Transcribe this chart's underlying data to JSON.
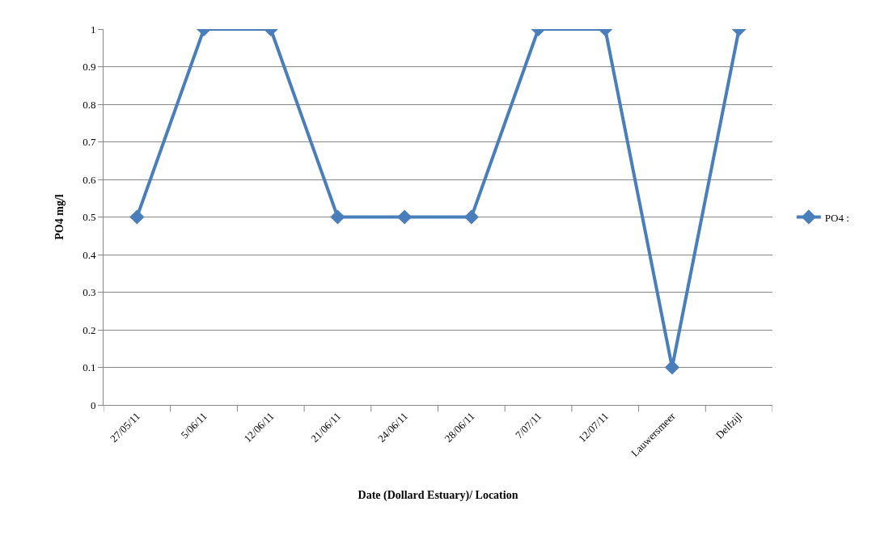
{
  "chart_data": {
    "type": "line",
    "xlabel": "Date (Dollard Estuary)/ Location",
    "ylabel": "PO4 mg/l",
    "categories": [
      "27/05/11",
      "5/06/11",
      "12/06/11",
      "21/06/11",
      "24/06/11",
      "28/06/11",
      "7/07/11",
      "12/07/11",
      "Lauwersmeer",
      "Delfzijl"
    ],
    "series": [
      {
        "name": "PO4 :",
        "color": "#4a7ebb",
        "values": [
          0.5,
          1,
          1,
          0.5,
          0.5,
          0.5,
          1,
          1,
          0.1,
          1
        ]
      }
    ],
    "ylim": [
      0,
      1
    ],
    "yticks": [
      0,
      0.1,
      0.2,
      0.3,
      0.4,
      0.5,
      0.6,
      0.7,
      0.8,
      0.9,
      1
    ],
    "grid": "y",
    "legend": "right",
    "marker": "diamond",
    "line_style": "solid"
  }
}
